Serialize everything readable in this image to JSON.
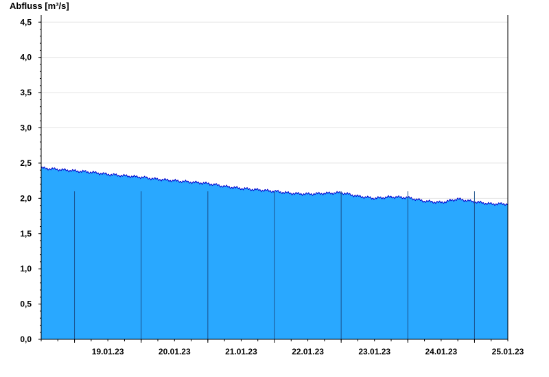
{
  "chart_data": {
    "type": "area",
    "ylabel": "Abfluss [m³/s]",
    "xlabel": "",
    "title": "",
    "ylim": [
      0,
      4.6
    ],
    "yticks": [
      0,
      0.5,
      1.0,
      1.5,
      2.0,
      2.5,
      3.0,
      3.5,
      4.0,
      4.5
    ],
    "ytick_labels": [
      "0,0",
      "0,5",
      "1,0",
      "1,5",
      "2,0",
      "2,5",
      "3,0",
      "3,5",
      "4,0",
      "4,5"
    ],
    "xlim": [
      "18.01.23 12:00",
      "25.01.23 12:00"
    ],
    "x_day_labels": [
      "19.01.23",
      "20.01.23",
      "21.01.23",
      "22.01.23",
      "23.01.23",
      "24.01.23",
      "25.01.23"
    ],
    "x_day_boundaries": [
      "19.01.23 00:00",
      "20.01.23 00:00",
      "21.01.23 00:00",
      "22.01.23 00:00",
      "23.01.23 00:00",
      "24.01.23 00:00",
      "25.01.23 00:00"
    ],
    "grid": true,
    "fill_color": "#29a8ff",
    "line_color": "#0000cc",
    "series": [
      {
        "x": [
          "18.01.23 12:00",
          "18.01.23 18:00",
          "19.01.23 00:00",
          "19.01.23 06:00",
          "19.01.23 12:00",
          "19.01.23 18:00",
          "20.01.23 00:00",
          "20.01.23 06:00",
          "20.01.23 12:00",
          "20.01.23 18:00",
          "21.01.23 00:00",
          "21.01.23 06:00",
          "21.01.23 12:00",
          "21.01.23 18:00",
          "22.01.23 00:00",
          "22.01.23 06:00",
          "22.01.23 12:00",
          "22.01.23 18:00",
          "23.01.23 00:00",
          "23.01.23 06:00",
          "23.01.23 12:00",
          "23.01.23 18:00",
          "24.01.23 00:00",
          "24.01.23 06:00",
          "24.01.23 12:00",
          "24.01.23 18:00",
          "25.01.23 00:00",
          "25.01.23 06:00",
          "25.01.23 12:00"
        ],
        "values": [
          2.43,
          2.41,
          2.39,
          2.37,
          2.34,
          2.32,
          2.3,
          2.27,
          2.25,
          2.23,
          2.21,
          2.17,
          2.14,
          2.12,
          2.1,
          2.07,
          2.06,
          2.07,
          2.08,
          2.03,
          2.0,
          2.02,
          2.01,
          1.96,
          1.94,
          1.99,
          1.95,
          1.92,
          1.92
        ]
      }
    ]
  }
}
